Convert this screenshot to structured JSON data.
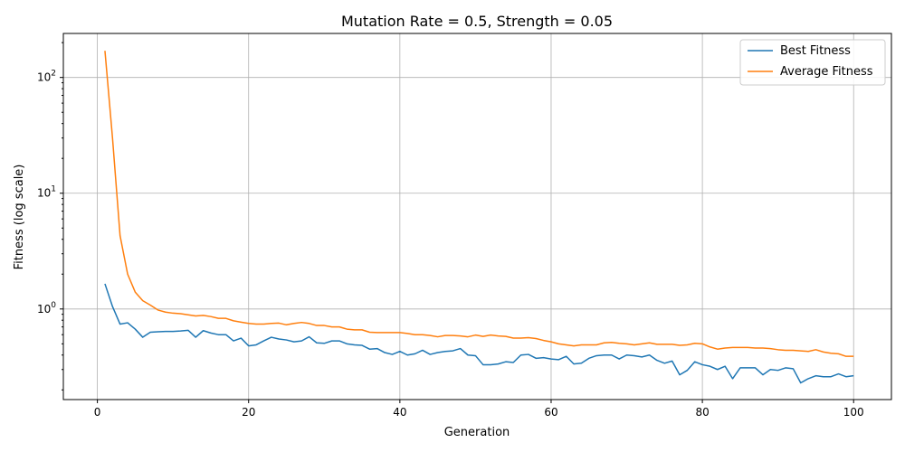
{
  "chart_data": {
    "type": "line",
    "title": "Mutation Rate = 0.5, Strength = 0.05",
    "xlabel": "Generation",
    "ylabel": "Fitness (log scale)",
    "yscale": "log",
    "xlim": [
      -4.5,
      105
    ],
    "ylim": [
      0.165,
      240
    ],
    "xticks": [
      0,
      20,
      40,
      60,
      80,
      100
    ],
    "yticks": [
      {
        "value": 1,
        "base": "10",
        "exp": "0"
      },
      {
        "value": 10,
        "base": "10",
        "exp": "1"
      },
      {
        "value": 100,
        "base": "10",
        "exp": "2"
      }
    ],
    "grid": true,
    "legend": "top-right",
    "x": [
      1,
      2,
      3,
      4,
      5,
      6,
      7,
      8,
      9,
      10,
      11,
      12,
      13,
      14,
      15,
      16,
      17,
      18,
      19,
      20,
      21,
      22,
      23,
      24,
      25,
      26,
      27,
      28,
      29,
      30,
      31,
      32,
      33,
      34,
      35,
      36,
      37,
      38,
      39,
      40,
      41,
      42,
      43,
      44,
      45,
      46,
      47,
      48,
      49,
      50,
      51,
      52,
      53,
      54,
      55,
      56,
      57,
      58,
      59,
      60,
      61,
      62,
      63,
      64,
      65,
      66,
      67,
      68,
      69,
      70,
      71,
      72,
      73,
      74,
      75,
      76,
      77,
      78,
      79,
      80,
      81,
      82,
      83,
      84,
      85,
      86,
      87,
      88,
      89,
      90,
      91,
      92,
      93,
      94,
      95,
      96,
      97,
      98,
      99,
      100
    ],
    "series": [
      {
        "name": "Best Fitness",
        "color": "#1f77b4",
        "values": [
          1.65,
          1.05,
          0.74,
          0.76,
          0.67,
          0.57,
          0.63,
          0.635,
          0.64,
          0.64,
          0.645,
          0.655,
          0.57,
          0.65,
          0.62,
          0.6,
          0.6,
          0.53,
          0.56,
          0.48,
          0.49,
          0.53,
          0.57,
          0.55,
          0.54,
          0.52,
          0.53,
          0.575,
          0.51,
          0.505,
          0.53,
          0.53,
          0.5,
          0.49,
          0.485,
          0.45,
          0.455,
          0.42,
          0.405,
          0.43,
          0.4,
          0.41,
          0.44,
          0.405,
          0.42,
          0.43,
          0.435,
          0.455,
          0.4,
          0.395,
          0.33,
          0.33,
          0.335,
          0.35,
          0.345,
          0.4,
          0.405,
          0.375,
          0.38,
          0.37,
          0.365,
          0.39,
          0.335,
          0.34,
          0.375,
          0.395,
          0.4,
          0.4,
          0.37,
          0.4,
          0.395,
          0.385,
          0.4,
          0.36,
          0.34,
          0.355,
          0.27,
          0.295,
          0.35,
          0.33,
          0.32,
          0.3,
          0.32,
          0.25,
          0.31,
          0.31,
          0.31,
          0.27,
          0.3,
          0.295,
          0.31,
          0.305,
          0.23,
          0.25,
          0.265,
          0.26,
          0.26,
          0.275,
          0.26,
          0.265
        ]
      },
      {
        "name": "Average Fitness",
        "color": "#ff7f0e",
        "values": [
          170,
          30,
          4.3,
          2.0,
          1.4,
          1.18,
          1.08,
          0.98,
          0.94,
          0.92,
          0.91,
          0.89,
          0.87,
          0.88,
          0.86,
          0.83,
          0.83,
          0.79,
          0.77,
          0.75,
          0.74,
          0.74,
          0.75,
          0.755,
          0.73,
          0.75,
          0.765,
          0.75,
          0.72,
          0.72,
          0.7,
          0.7,
          0.67,
          0.66,
          0.66,
          0.63,
          0.625,
          0.625,
          0.625,
          0.625,
          0.615,
          0.6,
          0.6,
          0.59,
          0.575,
          0.59,
          0.59,
          0.585,
          0.575,
          0.595,
          0.58,
          0.595,
          0.585,
          0.58,
          0.56,
          0.56,
          0.565,
          0.555,
          0.535,
          0.52,
          0.5,
          0.49,
          0.48,
          0.49,
          0.49,
          0.49,
          0.51,
          0.515,
          0.505,
          0.5,
          0.49,
          0.5,
          0.51,
          0.495,
          0.495,
          0.495,
          0.485,
          0.49,
          0.505,
          0.5,
          0.47,
          0.45,
          0.46,
          0.465,
          0.465,
          0.465,
          0.46,
          0.46,
          0.455,
          0.445,
          0.44,
          0.44,
          0.435,
          0.43,
          0.445,
          0.425,
          0.415,
          0.41,
          0.39,
          0.39
        ]
      }
    ]
  }
}
